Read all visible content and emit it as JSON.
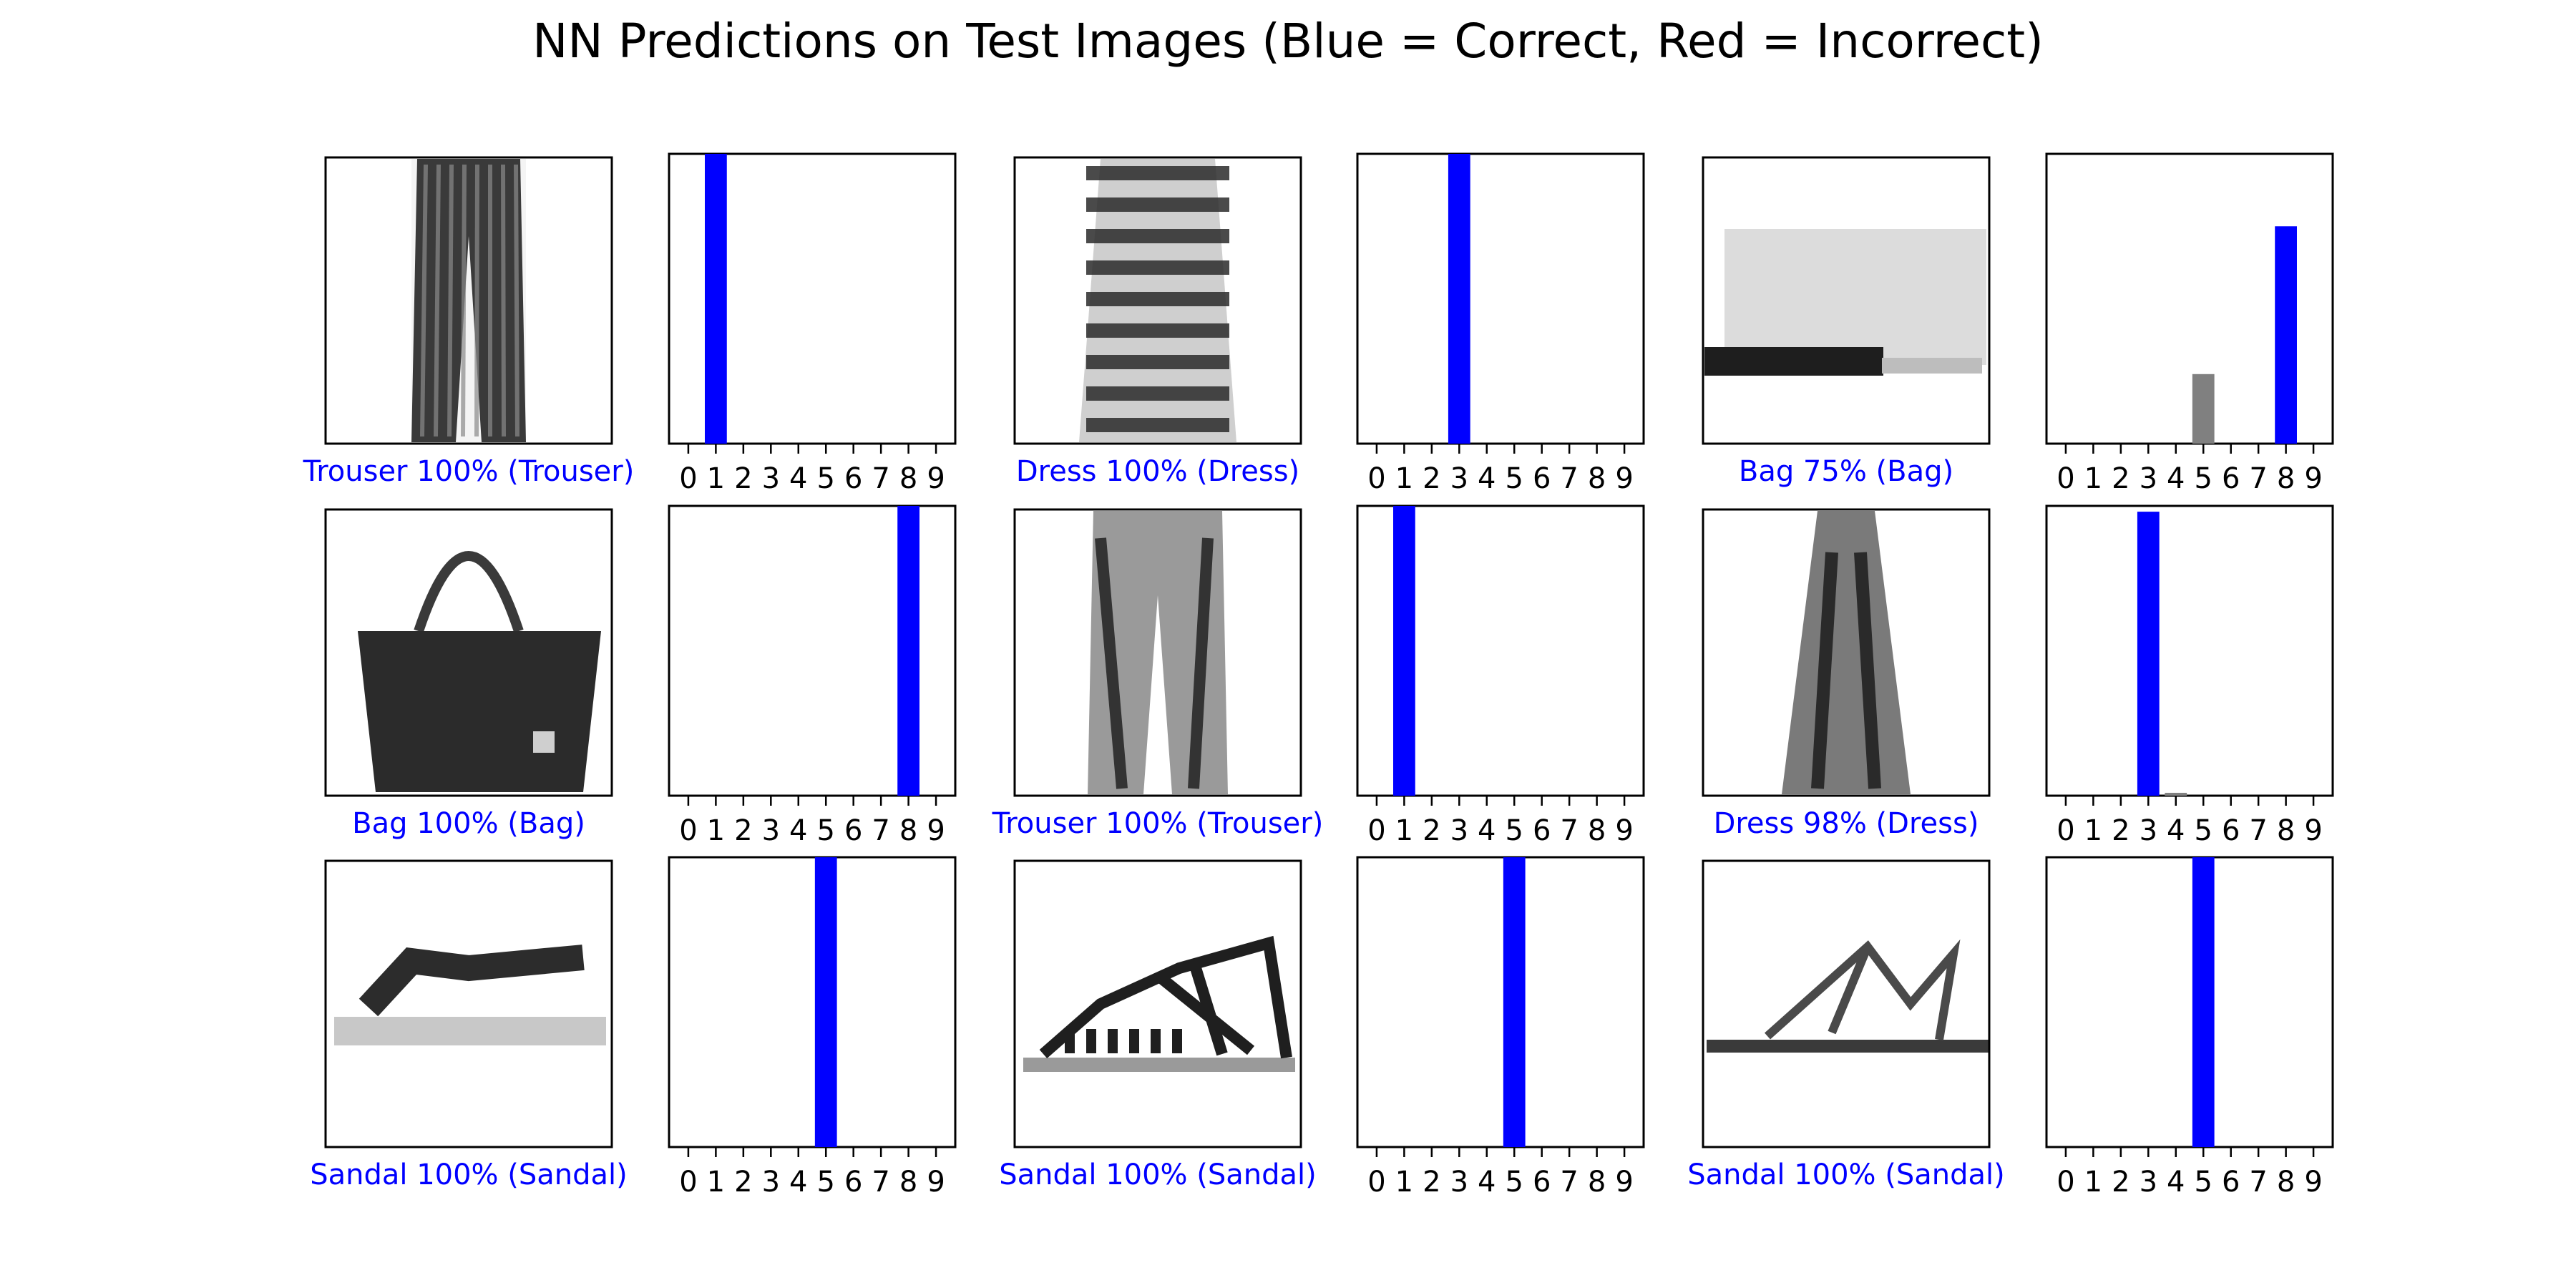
{
  "title": "NN Predictions on Test Images (Blue = Correct, Red = Incorrect)",
  "colors": {
    "correct": "#0000ff",
    "incorrect": "#ff0000",
    "other_class_bar": "#808080",
    "image_frame": "#000000"
  },
  "chart_data": [
    {
      "type": "bar",
      "panel": "Trouser",
      "caption": "Trouser 100% (Trouser)",
      "predicted": "Trouser",
      "confidence": "100%",
      "true_label": "Trouser",
      "correct": true,
      "categories": [
        "0",
        "1",
        "2",
        "3",
        "4",
        "5",
        "6",
        "7",
        "8",
        "9"
      ],
      "values": [
        0,
        1.0,
        0,
        0,
        0,
        0,
        0,
        0,
        0,
        0
      ],
      "ylim": [
        0,
        1
      ]
    },
    {
      "type": "bar",
      "panel": "Dress",
      "caption": "Dress 100% (Dress)",
      "predicted": "Dress",
      "confidence": "100%",
      "true_label": "Dress",
      "correct": true,
      "categories": [
        "0",
        "1",
        "2",
        "3",
        "4",
        "5",
        "6",
        "7",
        "8",
        "9"
      ],
      "values": [
        0,
        0,
        0,
        1.0,
        0,
        0,
        0,
        0,
        0,
        0
      ],
      "ylim": [
        0,
        1
      ]
    },
    {
      "type": "bar",
      "panel": "Bag",
      "caption": "Bag 75% (Bag)",
      "predicted": "Bag",
      "confidence": "75%",
      "true_label": "Bag",
      "correct": true,
      "categories": [
        "0",
        "1",
        "2",
        "3",
        "4",
        "5",
        "6",
        "7",
        "8",
        "9"
      ],
      "values": [
        0,
        0,
        0,
        0,
        0,
        0.24,
        0,
        0,
        0.75,
        0
      ],
      "ylim": [
        0,
        1
      ]
    },
    {
      "type": "bar",
      "panel": "Bag",
      "caption": "Bag 100% (Bag)",
      "predicted": "Bag",
      "confidence": "100%",
      "true_label": "Bag",
      "correct": true,
      "categories": [
        "0",
        "1",
        "2",
        "3",
        "4",
        "5",
        "6",
        "7",
        "8",
        "9"
      ],
      "values": [
        0,
        0,
        0,
        0,
        0,
        0,
        0,
        0,
        1.0,
        0
      ],
      "ylim": [
        0,
        1
      ]
    },
    {
      "type": "bar",
      "panel": "Trouser",
      "caption": "Trouser 100% (Trouser)",
      "predicted": "Trouser",
      "confidence": "100%",
      "true_label": "Trouser",
      "correct": true,
      "categories": [
        "0",
        "1",
        "2",
        "3",
        "4",
        "5",
        "6",
        "7",
        "8",
        "9"
      ],
      "values": [
        0,
        1.0,
        0,
        0,
        0,
        0,
        0,
        0,
        0,
        0
      ],
      "ylim": [
        0,
        1
      ]
    },
    {
      "type": "bar",
      "panel": "Dress",
      "caption": "Dress 98% (Dress)",
      "predicted": "Dress",
      "confidence": "98%",
      "true_label": "Dress",
      "correct": true,
      "categories": [
        "0",
        "1",
        "2",
        "3",
        "4",
        "5",
        "6",
        "7",
        "8",
        "9"
      ],
      "values": [
        0,
        0,
        0,
        0.98,
        0.01,
        0,
        0,
        0,
        0,
        0
      ],
      "ylim": [
        0,
        1
      ]
    },
    {
      "type": "bar",
      "panel": "Sandal",
      "caption": "Sandal 100% (Sandal)",
      "predicted": "Sandal",
      "confidence": "100%",
      "true_label": "Sandal",
      "correct": true,
      "categories": [
        "0",
        "1",
        "2",
        "3",
        "4",
        "5",
        "6",
        "7",
        "8",
        "9"
      ],
      "values": [
        0,
        0,
        0,
        0,
        0,
        1.0,
        0,
        0,
        0,
        0
      ],
      "ylim": [
        0,
        1
      ]
    },
    {
      "type": "bar",
      "panel": "Sandal",
      "caption": "Sandal 100% (Sandal)",
      "predicted": "Sandal",
      "confidence": "100%",
      "true_label": "Sandal",
      "correct": true,
      "categories": [
        "0",
        "1",
        "2",
        "3",
        "4",
        "5",
        "6",
        "7",
        "8",
        "9"
      ],
      "values": [
        0,
        0,
        0,
        0,
        0,
        1.0,
        0,
        0,
        0,
        0
      ],
      "ylim": [
        0,
        1
      ]
    },
    {
      "type": "bar",
      "panel": "Sandal",
      "caption": "Sandal 100% (Sandal)",
      "predicted": "Sandal",
      "confidence": "100%",
      "true_label": "Sandal",
      "correct": true,
      "categories": [
        "0",
        "1",
        "2",
        "3",
        "4",
        "5",
        "6",
        "7",
        "8",
        "9"
      ],
      "values": [
        0,
        0,
        0,
        0,
        0,
        1.0,
        0,
        0,
        0,
        0
      ],
      "ylim": [
        0,
        1
      ]
    }
  ]
}
